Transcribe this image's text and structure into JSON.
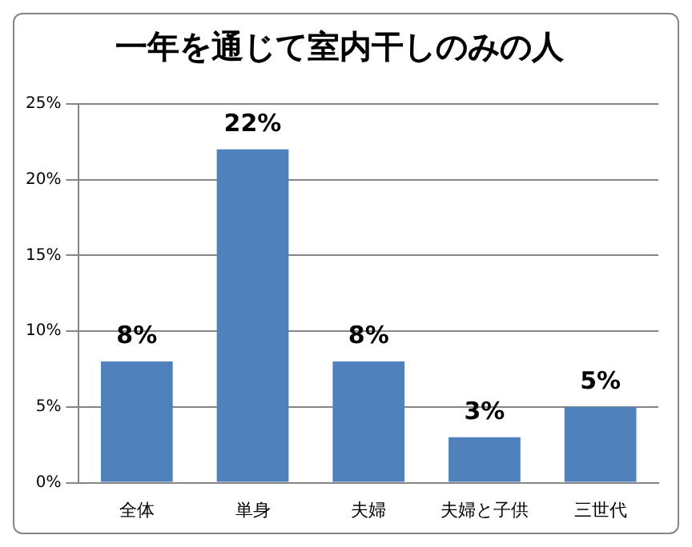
{
  "chart_data": {
    "type": "bar",
    "title": "一年を通じて室内干しのみの人",
    "categories": [
      "全体",
      "単身",
      "夫婦",
      "夫婦と子供",
      "三世代"
    ],
    "values": [
      8,
      22,
      8,
      3,
      5
    ],
    "value_labels": [
      "8%",
      "22%",
      "8%",
      "3%",
      "5%"
    ],
    "color": "#4f81bd",
    "ylim": [
      0,
      25
    ],
    "yticks": [
      {
        "value": 0,
        "label": "0%"
      },
      {
        "value": 5,
        "label": "5%"
      },
      {
        "value": 10,
        "label": "10%"
      },
      {
        "value": 15,
        "label": "15%"
      },
      {
        "value": 20,
        "label": "20%"
      },
      {
        "value": 25,
        "label": "25%"
      }
    ],
    "grid": "y"
  }
}
